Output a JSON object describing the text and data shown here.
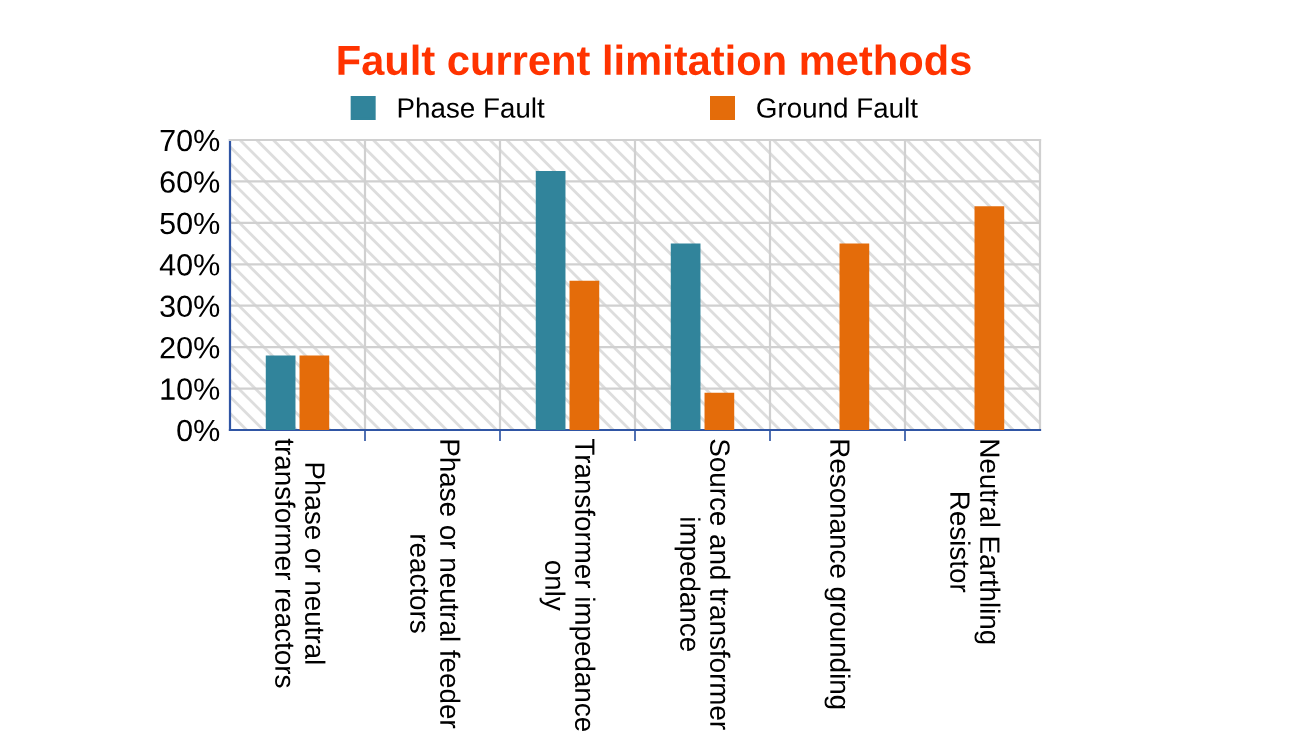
{
  "chart_data": {
    "type": "bar",
    "title": "Fault current limitation methods",
    "categories": [
      "Phase or neutral\ntransformer reactors",
      "Phase or neutral feeder\nreactors",
      "Transformer impedance\nonly",
      "Source and transformer\nimpedance",
      "Resonance grounding",
      "Neutral Earthling\nResistor"
    ],
    "series": [
      {
        "name": "Phase Fault",
        "color": "#31849b",
        "values": [
          18,
          0,
          62.5,
          45,
          0,
          0
        ]
      },
      {
        "name": "Ground Fault",
        "color": "#e46c0a",
        "values": [
          18,
          0,
          36,
          9,
          45,
          54
        ]
      }
    ],
    "ylim": [
      0,
      70
    ],
    "yticks": [
      {
        "value": 0,
        "label": "0%"
      },
      {
        "value": 10,
        "label": "10%"
      },
      {
        "value": 20,
        "label": "20%"
      },
      {
        "value": 30,
        "label": "30%"
      },
      {
        "value": 40,
        "label": "40%"
      },
      {
        "value": 50,
        "label": "50%"
      },
      {
        "value": 60,
        "label": "60%"
      },
      {
        "value": 70,
        "label": "70%"
      }
    ],
    "grid": true,
    "legend": "top"
  }
}
